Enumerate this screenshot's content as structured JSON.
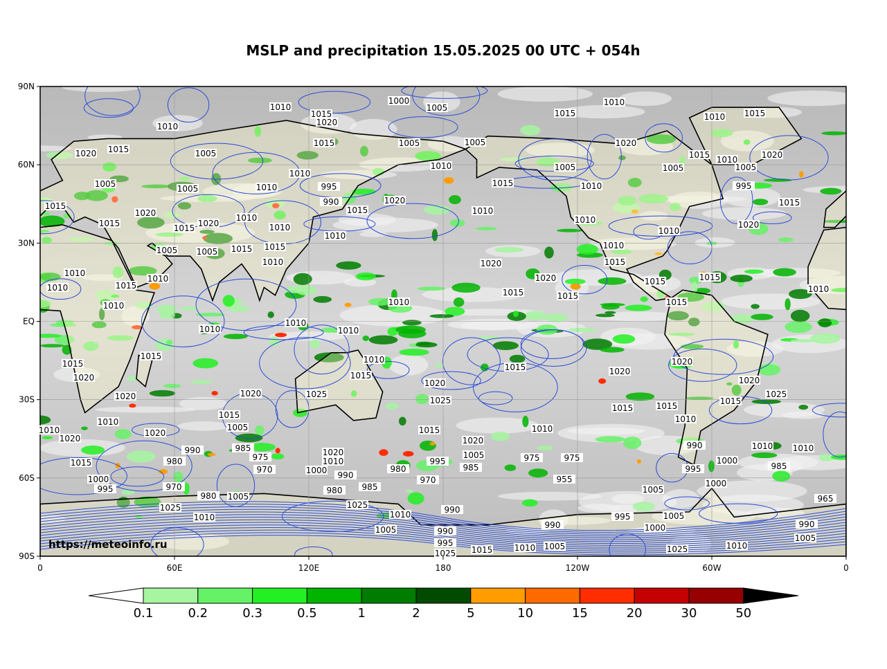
{
  "title": "MSLP and precipitation 15.05.2025 00 UTC + 054h",
  "source": "https://meteoinfo.ru",
  "x_axis_labels": [
    "0",
    "60E",
    "120E",
    "180",
    "120W",
    "60W",
    "0"
  ],
  "y_axis_labels": [
    "90N",
    "60N",
    "30N",
    "EQ",
    "30S",
    "60S",
    "90S"
  ],
  "colorbar": {
    "levels": [
      0.1,
      0.2,
      0.3,
      0.5,
      1,
      2,
      5,
      10,
      15,
      20,
      30,
      50
    ],
    "colors": [
      "#a6f5a0",
      "#66f266",
      "#22f022",
      "#00b400",
      "#007d00",
      "#004b00",
      "#ff9d00",
      "#ff6a00",
      "#ff2d00",
      "#c40000",
      "#960000"
    ]
  },
  "isobar_labels": [
    1010,
    1000,
    1005,
    1015,
    1020,
    1010,
    1005,
    1015,
    1005,
    1005,
    1015,
    1010,
    1020,
    1010,
    1015,
    1020,
    1015,
    1005,
    1005,
    1010,
    1010,
    995,
    990,
    1020,
    1010,
    1015,
    1010,
    1005,
    1010,
    1010,
    1005,
    1015,
    1010,
    1005,
    995,
    1020,
    1015,
    1020,
    1015,
    1015,
    1020,
    1015,
    1020,
    1010,
    1010,
    1010,
    1015,
    1005,
    1005,
    1015,
    1015,
    1010,
    1010,
    1010,
    1015,
    1010,
    1010,
    1015,
    1010,
    1010,
    1020,
    1020,
    1015,
    1015,
    1010,
    1015,
    1015,
    1010,
    1015,
    1010,
    1010,
    1010,
    1015,
    1020,
    1015,
    1010,
    1015,
    1015,
    1020,
    1025,
    1020,
    1020,
    1020,
    1025,
    1015,
    1020,
    1020,
    1025,
    1015,
    1015,
    1010,
    1010,
    1020,
    1020,
    1015,
    1005,
    1015,
    1020,
    1010,
    1010,
    990,
    1010,
    1010,
    1015,
    980,
    990,
    985,
    975,
    970,
    1000,
    1020,
    1010,
    990,
    995,
    1005,
    985,
    980,
    970,
    975,
    975,
    955,
    1000,
    995,
    985,
    1000,
    995,
    970,
    980,
    1005,
    980,
    985,
    1025,
    1025,
    1010,
    1010,
    990,
    1005,
    990,
    995,
    990,
    995,
    1005,
    1005,
    1000,
    1000,
    990,
    1005,
    965,
    1010,
    1025,
    1010,
    1005,
    1015,
    1025
  ]
}
